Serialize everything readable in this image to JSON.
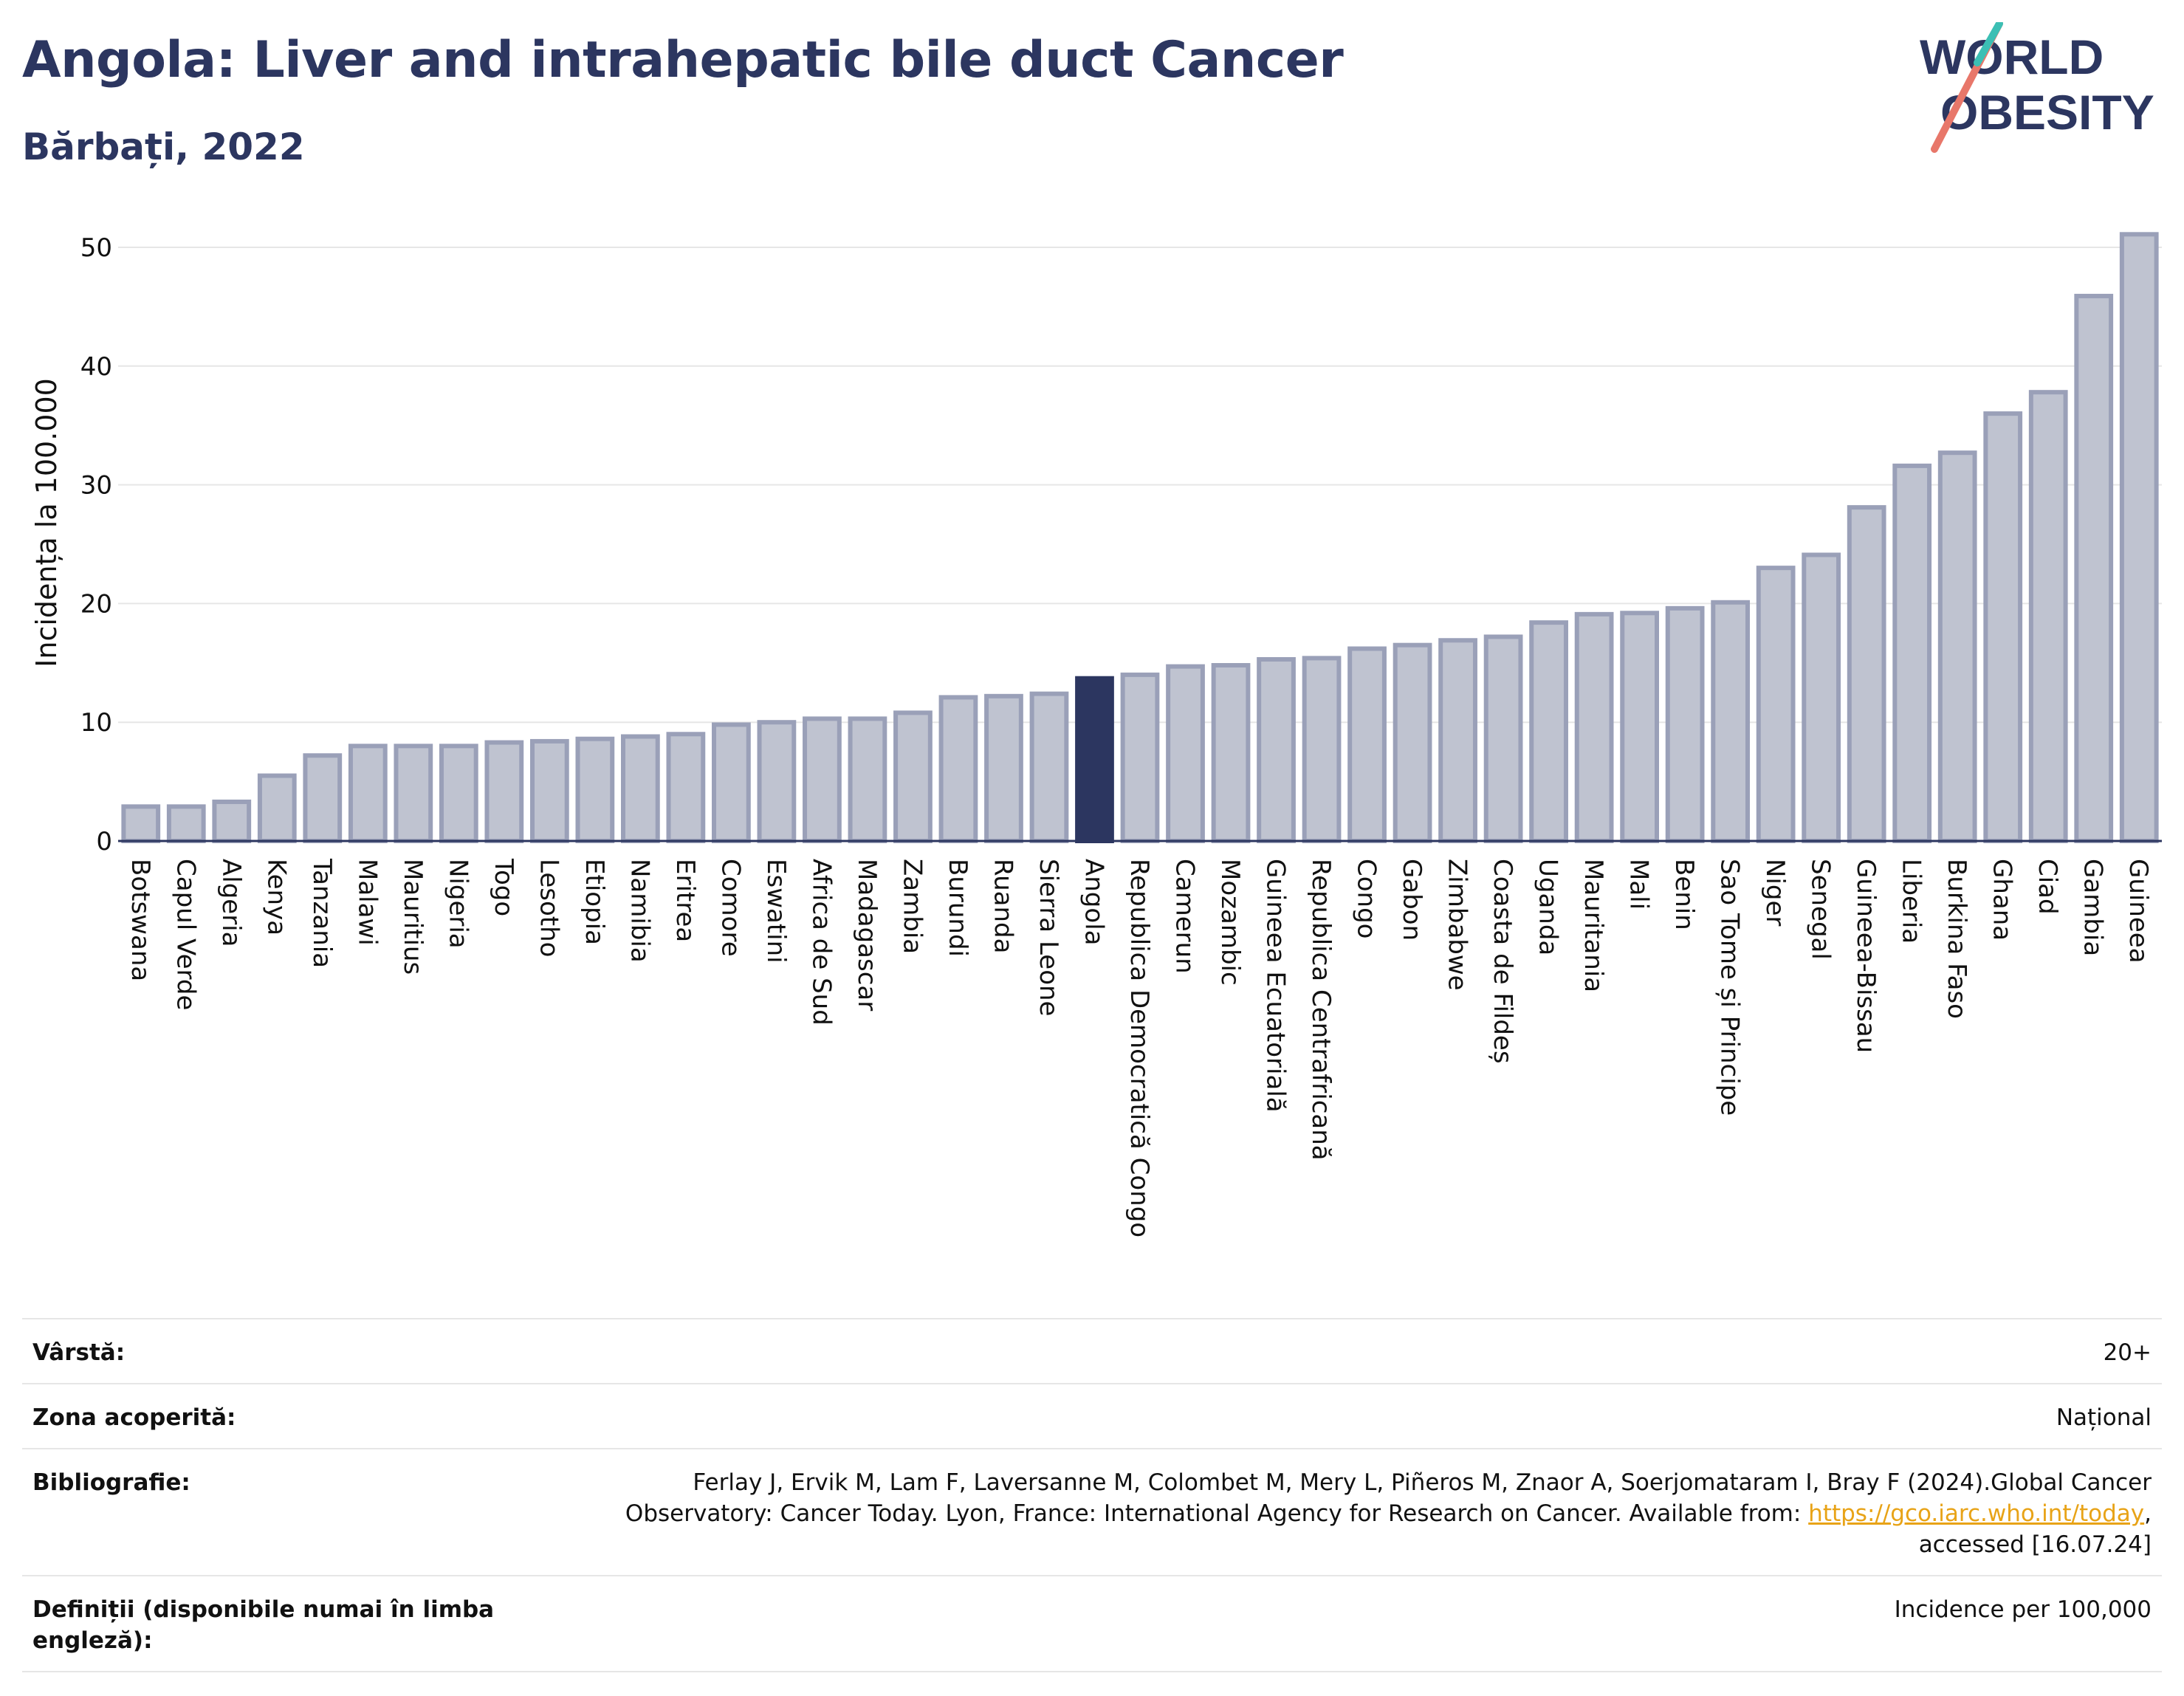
{
  "header": {
    "title": "Angola: Liver and intrahepatic bile duct Cancer",
    "subtitle": "Bărbați, 2022"
  },
  "logo": {
    "line1": "WORLD",
    "line2": "OBESITY"
  },
  "chart_data": {
    "type": "bar",
    "ylabel": "Incidența la 100.000",
    "xlabel": "",
    "ylim": [
      0,
      53
    ],
    "yticks": [
      0,
      10,
      20,
      30,
      40,
      50
    ],
    "grid": true,
    "highlight": "Angola",
    "colors": {
      "bar": "#bfc3d0",
      "bar_edge": "#9aa0b8",
      "highlight": "#2c3660"
    },
    "categories": [
      "Botswana",
      "Capul Verde",
      "Algeria",
      "Kenya",
      "Tanzania",
      "Malawi",
      "Mauritius",
      "Nigeria",
      "Togo",
      "Lesotho",
      "Etiopia",
      "Namibia",
      "Eritrea",
      "Comore",
      "Eswatini",
      "Africa de Sud",
      "Madagascar",
      "Zambia",
      "Burundi",
      "Ruanda",
      "Sierra Leone",
      "Angola",
      "Republica Democratică Congo",
      "Camerun",
      "Mozambic",
      "Guineea Ecuatorială",
      "Republica Centrafricană",
      "Congo",
      "Gabon",
      "Zimbabwe",
      "Coasta de Fildeș",
      "Uganda",
      "Mauritania",
      "Mali",
      "Benin",
      "Sao Tome și Principe",
      "Niger",
      "Senegal",
      "Guineea-Bissau",
      "Liberia",
      "Burkina Faso",
      "Ghana",
      "Ciad",
      "Gambia",
      "Guineea"
    ],
    "values": [
      2.9,
      2.9,
      3.3,
      5.5,
      7.2,
      8.0,
      8.0,
      8.0,
      8.3,
      8.4,
      8.6,
      8.8,
      9.0,
      9.8,
      10.0,
      10.3,
      10.3,
      10.8,
      12.1,
      12.2,
      12.4,
      13.7,
      14.0,
      14.7,
      14.8,
      15.3,
      15.4,
      16.2,
      16.5,
      16.9,
      17.2,
      18.4,
      19.1,
      19.2,
      19.6,
      20.1,
      23.0,
      24.1,
      28.1,
      31.6,
      32.7,
      36.0,
      37.8,
      45.9,
      51.1
    ]
  },
  "meta": {
    "age_label": "Vârstă:",
    "age_value": "20+",
    "area_label": "Zona acoperită:",
    "area_value": "Național",
    "biblio_label": "Bibliografie:",
    "biblio_text_1": "Ferlay J, Ervik M, Lam F, Laversanne M, Colombet M, Mery L, Piñeros M, Znaor A, Soerjomataram I, Bray F (2024).Global Cancer",
    "biblio_text_2": "Observatory: Cancer Today. Lyon, France: International Agency for Research on Cancer. Available from: ",
    "biblio_link": "https://gco.iarc.who.int/today",
    "biblio_text_3": ",",
    "biblio_text_4": "accessed [16.07.24]",
    "def_label": "Definiții (disponibile numai în limba engleză):",
    "def_value": "Incidence per 100,000"
  }
}
